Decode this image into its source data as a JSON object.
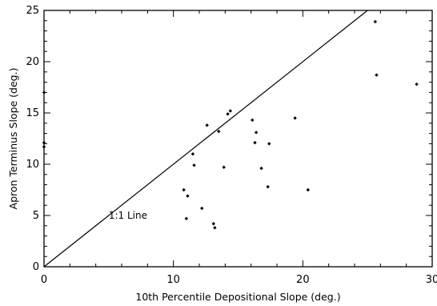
{
  "chart_data": {
    "type": "scatter",
    "xlabel": "10th Percentile Depositional Slope (deg.)",
    "ylabel": "Apron Terminus Slope (deg.)",
    "xlim": [
      0,
      30
    ],
    "ylim": [
      0,
      25
    ],
    "xticks": [
      0,
      10,
      20,
      30
    ],
    "yticks": [
      0,
      5,
      10,
      15,
      20,
      25
    ],
    "grid": false,
    "annotations": [
      {
        "text": "1:1 Line",
        "x": 5,
        "y": 5
      }
    ],
    "reference_line": {
      "label": "1:1 Line",
      "slope": 1,
      "intercept": 0
    },
    "series": [
      {
        "points": [
          [
            0,
            17
          ],
          [
            0,
            12.1
          ],
          [
            0,
            11.7
          ],
          [
            10.8,
            7.5
          ],
          [
            11.0,
            4.7
          ],
          [
            11.1,
            6.9
          ],
          [
            11.5,
            11.0
          ],
          [
            11.6,
            9.9
          ],
          [
            12.2,
            5.7
          ],
          [
            12.6,
            13.8
          ],
          [
            13.1,
            4.2
          ],
          [
            13.2,
            3.8
          ],
          [
            13.5,
            13.2
          ],
          [
            13.9,
            9.7
          ],
          [
            14.2,
            14.9
          ],
          [
            14.4,
            15.2
          ],
          [
            16.1,
            14.3
          ],
          [
            16.3,
            12.1
          ],
          [
            16.4,
            13.1
          ],
          [
            16.8,
            9.6
          ],
          [
            17.3,
            7.8
          ],
          [
            17.4,
            12.0
          ],
          [
            19.4,
            14.5
          ],
          [
            20.4,
            7.5
          ],
          [
            25.6,
            23.9
          ],
          [
            25.7,
            18.7
          ],
          [
            28.8,
            17.8
          ]
        ]
      }
    ]
  }
}
